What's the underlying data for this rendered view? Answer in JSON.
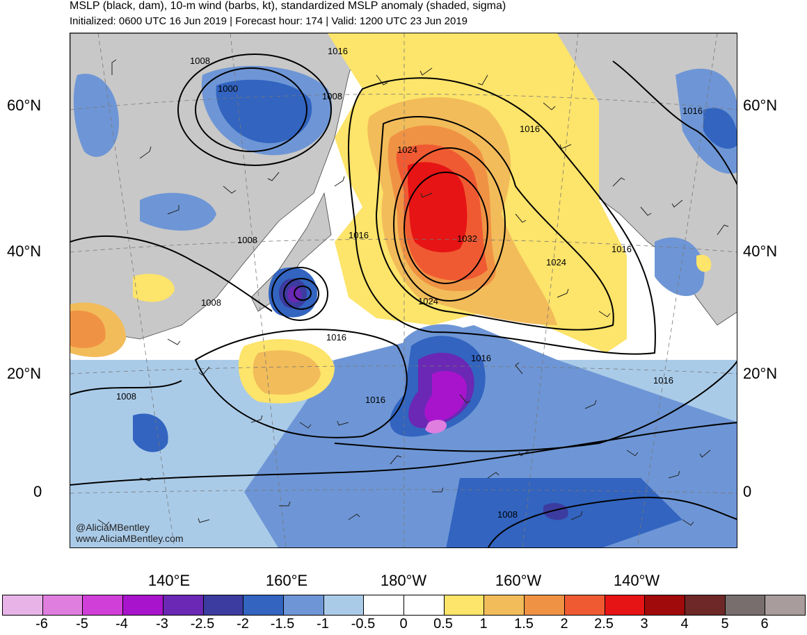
{
  "header": {
    "title": "MSLP (black, dam), 10-m wind (barbs, kt), standardized MSLP anomaly (shaded, sigma)",
    "subtitle": "Initialized: 0600 UTC 16 Jun 2019 | Forecast hour: 174 | Valid: 1200 UTC 23 Jun 2019"
  },
  "map": {
    "lat_labels": [
      "60°N",
      "40°N",
      "20°N",
      "0"
    ],
    "lon_labels": [
      "140°E",
      "160°E",
      "180°W",
      "160°W",
      "140°W"
    ],
    "contour_labels": [
      "1016",
      "1008",
      "1000",
      "1008",
      "1024",
      "1016",
      "1016",
      "1032",
      "1008",
      "1024",
      "1016",
      "1008",
      "1024",
      "1016",
      "1016",
      "1016",
      "1016",
      "1008",
      "1008",
      "1016"
    ],
    "credit_handle": "@AliciaMBentley",
    "credit_url": "www.AliciaMBentley.com",
    "colors": {
      "land": "#c8c8c8",
      "ocean": "#ffffff",
      "contour": "#000000"
    }
  },
  "colorbar": {
    "labels": [
      "-6",
      "-5",
      "-4",
      "-3",
      "-2.5",
      "-2",
      "-1.5",
      "-1",
      "-0.5",
      "0",
      "0.5",
      "1",
      "1.5",
      "2",
      "2.5",
      "3",
      "4",
      "5",
      "6"
    ],
    "colors": [
      "#e8b4e8",
      "#e07ee0",
      "#d040d8",
      "#a814cc",
      "#6a28b4",
      "#3c3ca0",
      "#3264c0",
      "#6e96d6",
      "#aacbe8",
      "#ffffff",
      "#ffffff",
      "#fde46a",
      "#f2bc5a",
      "#f09244",
      "#f05a32",
      "#e61414",
      "#a00a0a",
      "#6e2828",
      "#786e6e",
      "#a89c9c"
    ]
  }
}
